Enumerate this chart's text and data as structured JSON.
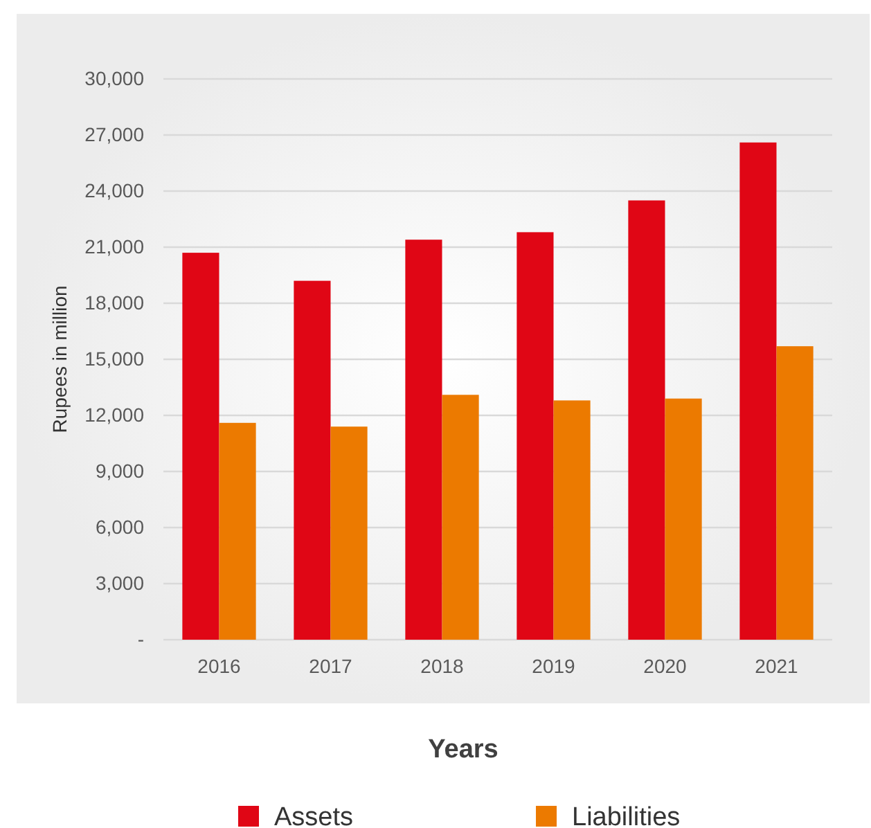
{
  "chart_data": {
    "type": "bar",
    "xlabel": "Years",
    "ylabel": "Rupees in million",
    "categories": [
      "2016",
      "2017",
      "2018",
      "2019",
      "2020",
      "2021"
    ],
    "series": [
      {
        "name": "Assets",
        "color": "#e00615",
        "values": [
          20700,
          19200,
          21400,
          21800,
          23500,
          26600
        ]
      },
      {
        "name": "Liabilities",
        "color": "#ec7a00",
        "values": [
          11600,
          11400,
          13100,
          12800,
          12900,
          15700
        ]
      }
    ],
    "ylim": [
      0,
      30000
    ],
    "yticks": [
      {
        "value": 0,
        "label": "-"
      },
      {
        "value": 3000,
        "label": "3,000"
      },
      {
        "value": 6000,
        "label": "6,000"
      },
      {
        "value": 9000,
        "label": "9,000"
      },
      {
        "value": 12000,
        "label": "12,000"
      },
      {
        "value": 15000,
        "label": "15,000"
      },
      {
        "value": 18000,
        "label": "18,000"
      },
      {
        "value": 21000,
        "label": "21,000"
      },
      {
        "value": 24000,
        "label": "24,000"
      },
      {
        "value": 27000,
        "label": "27,000"
      },
      {
        "value": 30000,
        "label": "30,000"
      }
    ],
    "grid": "y",
    "legend": "bottom"
  }
}
